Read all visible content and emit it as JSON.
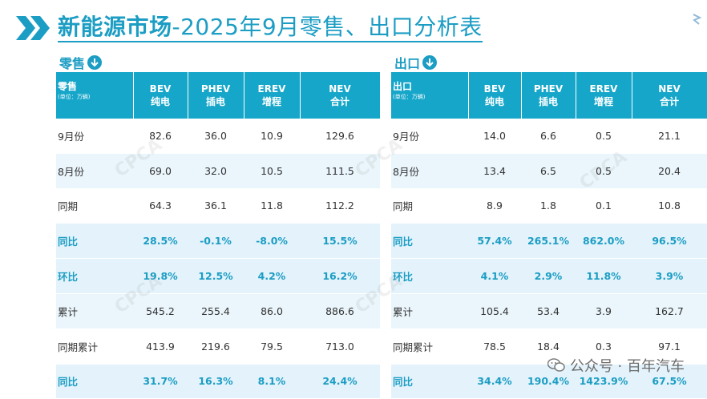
{
  "header": {
    "title_bold": "新能源市场",
    "title_rest": "-2025年9月零售、出口分析表"
  },
  "retail": {
    "section_label": "零售",
    "header_label": "零售",
    "header_unit": "(单位：万辆)",
    "columns": [
      {
        "line1": "BEV",
        "line2": "纯电"
      },
      {
        "line1": "PHEV",
        "line2": "插电"
      },
      {
        "line1": "EREV",
        "line2": "增程"
      },
      {
        "line1": "NEV",
        "line2": "合计"
      }
    ],
    "rows": [
      {
        "label": "9月份",
        "values": [
          "82.6",
          "36.0",
          "10.9",
          "129.6"
        ],
        "kind": "plain"
      },
      {
        "label": "8月份",
        "values": [
          "69.0",
          "32.0",
          "10.5",
          "111.5"
        ],
        "kind": "plain"
      },
      {
        "label": "同期",
        "values": [
          "64.3",
          "36.1",
          "11.8",
          "112.2"
        ],
        "kind": "plain"
      },
      {
        "label": "同比",
        "values": [
          "28.5%",
          "-0.1%",
          "-8.0%",
          "15.5%"
        ],
        "kind": "pct"
      },
      {
        "label": "环比",
        "values": [
          "19.8%",
          "12.5%",
          "4.2%",
          "16.2%"
        ],
        "kind": "pct"
      },
      {
        "label": "累计",
        "values": [
          "545.2",
          "255.4",
          "86.0",
          "886.6"
        ],
        "kind": "plain"
      },
      {
        "label": "同期累计",
        "values": [
          "413.9",
          "219.6",
          "79.5",
          "713.0"
        ],
        "kind": "plain"
      },
      {
        "label": "同比",
        "values": [
          "31.7%",
          "16.3%",
          "8.1%",
          "24.4%"
        ],
        "kind": "pct"
      }
    ]
  },
  "export": {
    "section_label": "出口",
    "header_label": "出口",
    "header_unit": "(单位：万辆)",
    "columns": [
      {
        "line1": "BEV",
        "line2": "纯电"
      },
      {
        "line1": "PHEV",
        "line2": "插电"
      },
      {
        "line1": "EREV",
        "line2": "增程"
      },
      {
        "line1": "NEV",
        "line2": "合计"
      }
    ],
    "rows": [
      {
        "label": "9月份",
        "values": [
          "14.0",
          "6.6",
          "0.5",
          "21.1"
        ],
        "kind": "plain"
      },
      {
        "label": "8月份",
        "values": [
          "13.4",
          "6.5",
          "0.5",
          "20.4"
        ],
        "kind": "plain"
      },
      {
        "label": "同期",
        "values": [
          "8.9",
          "1.8",
          "0.1",
          "10.8"
        ],
        "kind": "plain"
      },
      {
        "label": "同比",
        "values": [
          "57.4%",
          "265.1%",
          "862.0%",
          "96.5%"
        ],
        "kind": "pct"
      },
      {
        "label": "环比",
        "values": [
          "4.1%",
          "2.9%",
          "11.8%",
          "3.9%"
        ],
        "kind": "pct"
      },
      {
        "label": "累计",
        "values": [
          "105.4",
          "53.4",
          "3.9",
          "162.7"
        ],
        "kind": "plain"
      },
      {
        "label": "同期累计",
        "values": [
          "78.5",
          "18.4",
          "0.3",
          "97.1"
        ],
        "kind": "plain"
      },
      {
        "label": "同比",
        "values": [
          "34.4%",
          "190.4%",
          "1423.9%",
          "67.5%"
        ],
        "kind": "pct"
      }
    ]
  },
  "watermark": {
    "brand": "公众号 · 百年汽车",
    "logo_text": "CPCA"
  },
  "colors": {
    "accent": "#1c9dc4",
    "header_bg": "#16a6c9",
    "pct_row_bg": "#e4f3fb"
  }
}
